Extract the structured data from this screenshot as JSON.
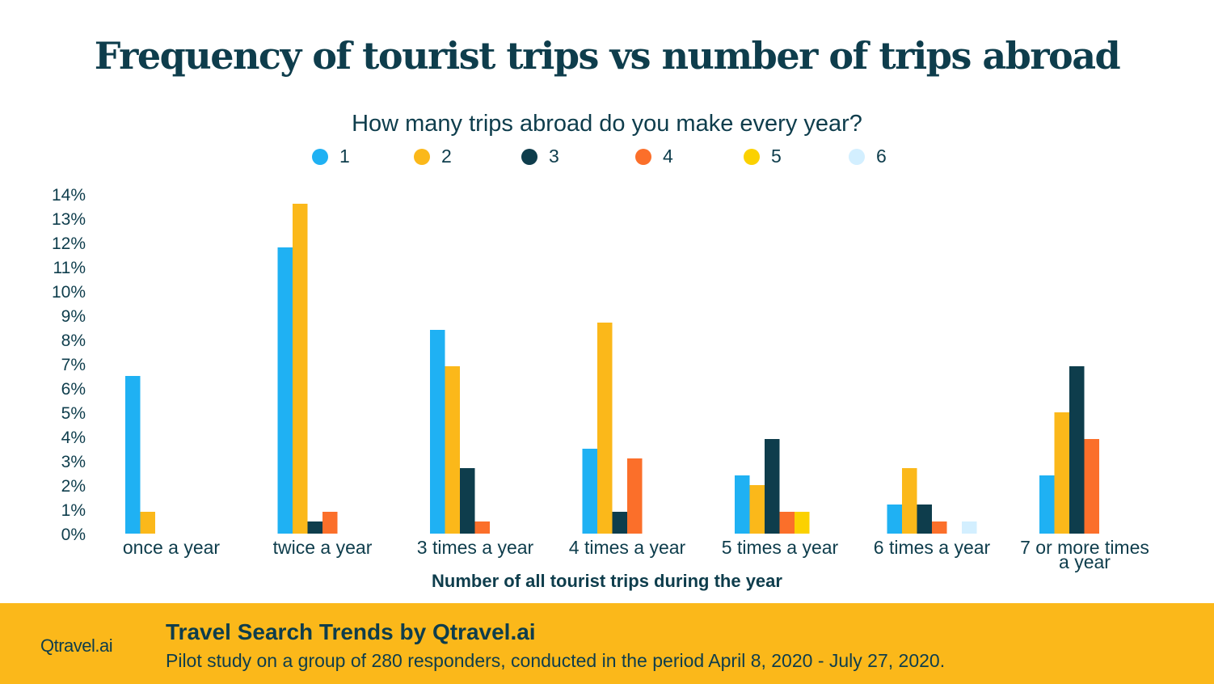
{
  "header": {
    "title": "Frequency of tourist trips vs number of trips abroad",
    "subtitle": "How many trips abroad do you make every year?"
  },
  "footer": {
    "logo": "Qtravel.ai",
    "title": "Travel Search Trends by Qtravel.ai",
    "text": "Pilot study on a group of 280 responders, conducted in the period April 8, 2020 - July 27, 2020."
  },
  "chart_data": {
    "type": "bar",
    "title": "Frequency of tourist trips vs number of trips abroad",
    "subtitle": "How many trips abroad do you make every year?",
    "xlabel": "Number of all tourist trips during the year",
    "ylabel": "",
    "ylim": [
      0,
      14
    ],
    "yticks": [
      "0%",
      "1%",
      "2%",
      "3%",
      "4%",
      "5%",
      "6%",
      "7%",
      "8%",
      "9%",
      "10%",
      "11%",
      "12%",
      "13%",
      "14%"
    ],
    "grid": false,
    "legend_position": "top-center",
    "categories": [
      "once  a year",
      "twice a year",
      "3 times a year",
      "4 times a year",
      "5 times a year",
      "6 times a year",
      "7 or more times a year"
    ],
    "category_lines": [
      [
        "once  a year"
      ],
      [
        "twice a year"
      ],
      [
        "3 times a year"
      ],
      [
        "4 times a year"
      ],
      [
        "5 times a year"
      ],
      [
        "6 times a year"
      ],
      [
        "7 or more times",
        "a year"
      ]
    ],
    "series": [
      {
        "name": "1",
        "color": "#1fb1f3",
        "values": [
          6.5,
          11.8,
          8.4,
          3.5,
          2.4,
          1.2,
          2.4
        ]
      },
      {
        "name": "2",
        "color": "#fbb81a",
        "values": [
          0.9,
          13.6,
          6.9,
          8.7,
          2.0,
          2.7,
          5.0
        ]
      },
      {
        "name": "3",
        "color": "#0e3d4c",
        "values": [
          0,
          0.5,
          2.7,
          0.9,
          3.9,
          1.2,
          6.9
        ]
      },
      {
        "name": "4",
        "color": "#fb6f2a",
        "values": [
          0,
          0.9,
          0.5,
          3.1,
          0.9,
          0.5,
          3.9
        ]
      },
      {
        "name": "5",
        "color": "#fbd100",
        "values": [
          0,
          0,
          0,
          0,
          0.9,
          0,
          0
        ]
      },
      {
        "name": "6",
        "color": "#d3efff",
        "values": [
          0,
          0,
          0,
          0,
          0,
          0.5,
          0
        ]
      }
    ]
  }
}
